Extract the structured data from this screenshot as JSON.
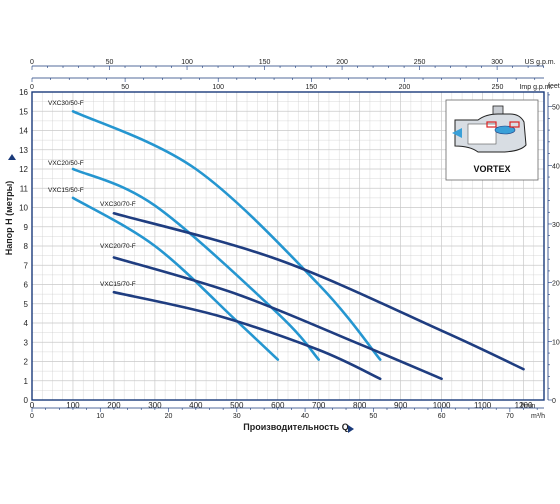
{
  "chart_data": {
    "type": "line",
    "xlabel": "Производительность Q",
    "ylabel": "Напор H (метры)",
    "x_unit": "l/min",
    "xlim": [
      0,
      1250
    ],
    "ylim": [
      0,
      16
    ],
    "x_ticks": [
      0,
      100,
      200,
      300,
      400,
      500,
      600,
      700,
      800,
      900,
      1000,
      1100,
      1200
    ],
    "y_ticks": [
      0,
      1,
      2,
      3,
      4,
      5,
      6,
      7,
      8,
      9,
      10,
      11,
      12,
      13,
      14,
      15,
      16
    ],
    "grid": true,
    "secondary_axes": {
      "top_us": {
        "unit": "US g.p.m.",
        "ticks": [
          0,
          50,
          100,
          150,
          200,
          250,
          300
        ]
      },
      "top_imp": {
        "unit": "Imp g.p.m.",
        "ticks": [
          0,
          50,
          100,
          150,
          200,
          250
        ]
      },
      "bottom_m3h": {
        "unit": "m³/h",
        "ticks": [
          0,
          10,
          20,
          30,
          40,
          50,
          60,
          70
        ]
      },
      "right_feet": {
        "unit": "feet",
        "ticks": [
          0,
          10,
          20,
          30,
          40,
          50
        ]
      }
    },
    "series": [
      {
        "name": "VXC30/50-F",
        "color": "#2596d0",
        "x": [
          100,
          400,
          700,
          850
        ],
        "y": [
          15.0,
          12.0,
          6.0,
          2.1
        ]
      },
      {
        "name": "VXC20/50-F",
        "color": "#2596d0",
        "x": [
          100,
          300,
          600,
          700
        ],
        "y": [
          12.0,
          10.1,
          4.5,
          2.1
        ]
      },
      {
        "name": "VXC15/50-F",
        "color": "#2596d0",
        "x": [
          100,
          300,
          500,
          600
        ],
        "y": [
          10.5,
          8.0,
          4.1,
          2.1
        ]
      },
      {
        "name": "VXC30/70-F",
        "color": "#1f3d80",
        "x": [
          200,
          600,
          1000,
          1200
        ],
        "y": [
          9.7,
          7.3,
          3.6,
          1.6
        ]
      },
      {
        "name": "VXC20/70-F",
        "color": "#1f3d80",
        "x": [
          200,
          500,
          800,
          1000
        ],
        "y": [
          7.4,
          5.5,
          2.9,
          1.1
        ]
      },
      {
        "name": "VXC15/70-F",
        "color": "#1f3d80",
        "x": [
          200,
          450,
          700,
          850
        ],
        "y": [
          5.6,
          4.4,
          2.6,
          1.1
        ]
      }
    ]
  },
  "inset": {
    "label": "VORTEX"
  },
  "colors": {
    "frame": "#1a3a7a",
    "grid": "#c9c9c9",
    "light_line": "#2596d0",
    "dark_line": "#1f3d80"
  }
}
